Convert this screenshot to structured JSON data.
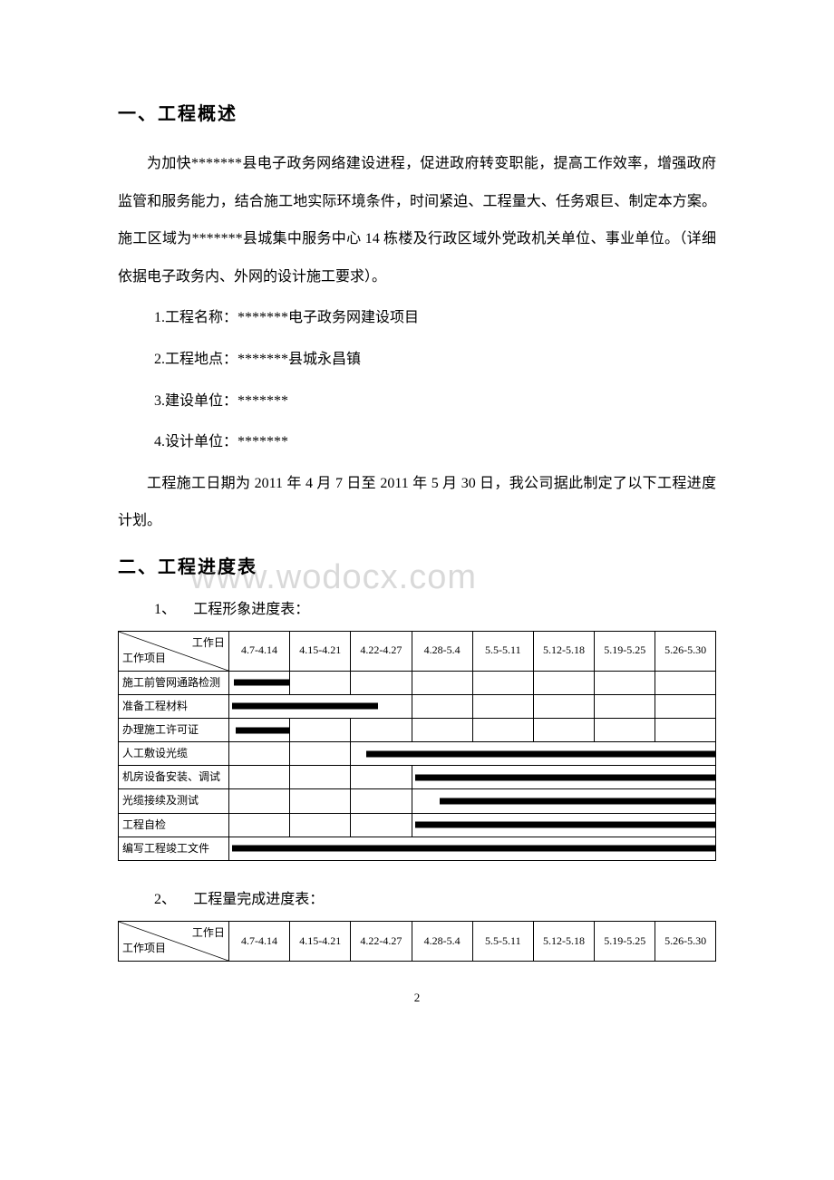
{
  "watermark": "www.wodocx.com",
  "section1": {
    "heading": "一、工程概述",
    "p1": "为加快*******县电子政务网络建设进程，促进政府转变职能，提高工作效率，增强政府监管和服务能力，结合施工地实际环境条件，时间紧迫、工程量大、任务艰巨、制定本方案。施工区域为*******县城集中服务中心 14 栋楼及行政区域外党政机关单位、事业单位。（详细依据电子政务内、外网的设计施工要求）。",
    "l1": "1.工程名称：*******电子政务网建设项目",
    "l2": "2.工程地点：*******县城永昌镇",
    "l3": "3.建设单位：*******",
    "l4": "4.设计单位：*******",
    "p2": "工程施工日期为 2011 年 4 月 7 日至 2011 年 5 月 30 日，我公司据此制定了以下工程进度计划。"
  },
  "section2": {
    "heading": "二、工程进度表",
    "sub1_num": "1、",
    "sub1_label": "工程形象进度表：",
    "sub2_num": "2、",
    "sub2_label": "工程量完成进度表："
  },
  "table_header": {
    "diag_left": "工作项目",
    "diag_right": "工作日",
    "cols": [
      "4.7-4.14",
      "4.15-4.21",
      "4.22-4.27",
      "4.28-5.4",
      "5.5-5.11",
      "5.12-5.18",
      "5.19-5.25",
      "5.26-5.30"
    ]
  },
  "gantt1": {
    "col_widths_pct": [
      18.5,
      10.2,
      10.2,
      10.2,
      10.2,
      10.2,
      10.2,
      10.2,
      10.1
    ],
    "rows": [
      {
        "label": "施工前管网通路检测",
        "bars": [
          {
            "start": 0,
            "span": 1,
            "left_frac": 0.08,
            "right_frac": 0.0
          }
        ]
      },
      {
        "label": "准备工程材料",
        "bars": [
          {
            "start": 0,
            "span": 3,
            "left_frac": 0.05,
            "right_frac": 0.55
          }
        ]
      },
      {
        "label": "办理施工许可证",
        "bars": [
          {
            "start": 0,
            "span": 1,
            "left_frac": 0.1,
            "right_frac": 0.0
          }
        ]
      },
      {
        "label": "人工敷设光缆",
        "bars": [
          {
            "start": 2,
            "span": 6,
            "left_frac": 0.25,
            "right_frac": 0.0
          }
        ]
      },
      {
        "label": "机房设备安装、调试",
        "bars": [
          {
            "start": 3,
            "span": 5,
            "left_frac": 0.05,
            "right_frac": 0.0
          }
        ]
      },
      {
        "label": "光缆接续及测试",
        "bars": [
          {
            "start": 3,
            "span": 5,
            "left_frac": 0.45,
            "right_frac": 0.0
          }
        ]
      },
      {
        "label": "工程自检",
        "bars": [
          {
            "start": 3,
            "span": 5,
            "left_frac": 0.05,
            "right_frac": 0.0
          }
        ]
      },
      {
        "label": "编写工程竣工文件",
        "bars": [
          {
            "start": 0,
            "span": 8,
            "left_frac": 0.05,
            "right_frac": 0.0
          }
        ]
      }
    ]
  },
  "page_number": "2"
}
